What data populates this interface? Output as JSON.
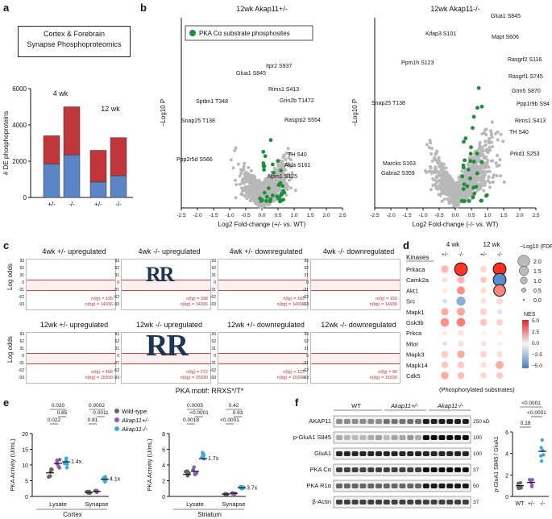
{
  "panels": {
    "a": "a",
    "b": "b",
    "c": "c",
    "d": "d",
    "e": "e",
    "f": "f"
  },
  "panel_a": {
    "box_line1": "Cortex & Forebrain",
    "box_line2": "Synapse Phosphoproteomics",
    "ylabel": "# DE phosphoproteins",
    "group1": "4 wk",
    "group2": "12 wk",
    "yticks": [
      "0",
      "2000",
      "4000",
      "6000"
    ],
    "xticks": [
      "+/-",
      "-/-",
      "+/-",
      "-/-"
    ],
    "colors": {
      "blue": "#5b85c6",
      "red": "#c0363b"
    }
  },
  "panel_b": {
    "title_left": "12wk Akap11+/-",
    "title_right": "12wk Akap11-/-",
    "legend": "PKA Cα substrate phosphosites",
    "ylabel": "−Log10 P",
    "xlabel_left": "Log2 Fold-change (+/- vs. WT)",
    "xlabel_right": "Log2 Fold-change (-/- vs. WT)",
    "xticks": [
      "-2.5",
      "-2.0",
      "-1.5",
      "-1.0",
      "-0.5",
      "0.0",
      "0.5",
      "1.0",
      "1.5",
      "2.0",
      "2.5"
    ],
    "left_labels": [
      "Sptbn1 T348",
      "Glua1 S845",
      "Itpr2 S937",
      "Rims1 S413",
      "Grin2b T1472",
      "Rasgrp2 S554",
      "Snap25 T138",
      "Ppp2r5d S566",
      "TH S40",
      "Aida S161",
      "Npm1 S125"
    ],
    "right_labels": [
      "Glua1 S845",
      "Kifap3 S101",
      "Mapt S606",
      "Ppm1h S123",
      "Rasgrf2 S116",
      "Rasgrf1 S745",
      "Snap25 T138",
      "Grm5 S870",
      "Ppp1r9b S94",
      "Rims1 S413",
      "TH S40",
      "Marcks S163",
      "Gabra2 S359",
      "Prkd1 S253"
    ],
    "colors": {
      "gray": "#b8b8b8",
      "green": "#1e8e3e"
    }
  },
  "panel_c": {
    "ylabel": "Log odds",
    "titles": [
      "4wk +/- upregulated",
      "4wk -/- upregulated",
      "4wk +/- downregulated",
      "4wk -/- downregulated",
      "12wk +/- upregulated",
      "12wk -/- upregulated",
      "12wk +/- downregulated",
      "12wk -/- downregulated"
    ],
    "counts_fg": [
      "n(fg) = 195",
      "n(fg) = 308",
      "n(fg) = 183",
      "n(fg) = 150",
      "n(fg) = 406",
      "n(fg) = 272",
      "n(fg) = 123",
      "n(fg) = 99"
    ],
    "counts_bg": [
      "n(bg) = 14936",
      "n(bg) = 14936",
      "n(bg) = 14936",
      "n(bg) = 14936",
      "n(bg) = 15930",
      "n(bg) = 15930",
      "n(bg) = 15930",
      "n(bg) = 15930"
    ],
    "yticks": [
      "93",
      "62",
      "31",
      "0",
      "-31",
      "-62",
      "-93"
    ],
    "caption": "PKA motif: RRXS*/T*"
  },
  "panel_d": {
    "kinases_header": "Kinases",
    "cols_top": [
      "4 wk",
      "12 wk"
    ],
    "cols": [
      "+/-",
      "-/-",
      "+/-",
      "-/-"
    ],
    "kinases": [
      "Prkaca",
      "Camk2a",
      "Akt1",
      "Src",
      "Mapk1",
      "Gsk3b",
      "Prkca",
      "Mtor",
      "Mapk3",
      "Mapk14",
      "Cdk5"
    ],
    "size_legend_title": "−Log10 (FDR)",
    "size_legend": [
      "2.0",
      "1.5",
      "1.0",
      "0.5",
      "0.0"
    ],
    "nes_title": "NES",
    "nes_ticks": [
      "5.0",
      "2.5",
      "0.0",
      "−2.5",
      "−5.0"
    ],
    "caption": "(Phosphorylated substrates)",
    "values": [
      [
        1.5,
        4.8,
        0.8,
        5.0
      ],
      [
        0.6,
        1.5,
        1.2,
        -4.5
      ],
      [
        0.3,
        2.5,
        0.6,
        2.8
      ],
      [
        -0.8,
        -3.0,
        0.5,
        0.7
      ],
      [
        1.8,
        2.0,
        0.8,
        -0.5
      ],
      [
        2.5,
        3.0,
        1.2,
        0.9
      ],
      [
        0.3,
        0.5,
        0.2,
        0.3
      ],
      [
        -0.6,
        0.5,
        0.6,
        0.2
      ],
      [
        1.0,
        1.8,
        0.8,
        0.6
      ],
      [
        1.2,
        1.0,
        0.5,
        1.8
      ],
      [
        1.8,
        1.4,
        0.7,
        1.1
      ]
    ],
    "sizes": [
      [
        1.0,
        2.0,
        0.8,
        2.0
      ],
      [
        0.5,
        1.0,
        0.7,
        2.0
      ],
      [
        0.5,
        1.1,
        0.7,
        1.8
      ],
      [
        0.4,
        1.3,
        0.6,
        0.8
      ],
      [
        1.0,
        1.1,
        0.9,
        0.6
      ],
      [
        1.2,
        1.2,
        0.9,
        0.8
      ],
      [
        0.4,
        0.6,
        0.3,
        0.5
      ],
      [
        0.4,
        0.7,
        0.5,
        0.4
      ],
      [
        0.9,
        1.0,
        0.8,
        0.7
      ],
      [
        0.8,
        0.9,
        0.7,
        1.1
      ],
      [
        1.0,
        0.9,
        0.8,
        0.8
      ]
    ]
  },
  "panel_e": {
    "ylabel": "PKA Activity (U/mL)",
    "cortex_label": "Cortex",
    "striatum_label": "Striatum",
    "groups": [
      "Lysate",
      "Synapse"
    ],
    "legend": [
      "Wild-type",
      "Akap11+/-",
      "Akap11-/-"
    ],
    "colors": [
      "#666666",
      "#8e5bb0",
      "#3fa9dc"
    ],
    "cortex_yticks": [
      "0",
      "5",
      "10",
      "15",
      "20"
    ],
    "striatum_yticks": [
      "0",
      "2",
      "4",
      "6",
      "8"
    ],
    "cortex_pvals": [
      "0.020",
      "0.85",
      "0.022",
      "0.0002",
      "0.0011",
      "0.81"
    ],
    "striatum_pvals": [
      "0.0005",
      "<0.0001",
      "0.0018",
      "0.42",
      "0.93",
      "<0.0001"
    ],
    "cortex_folds": [
      "1.4x",
      "4.1x"
    ],
    "striatum_folds": [
      "1.7x",
      "3.7x"
    ]
  },
  "panel_f": {
    "groups": [
      "WT",
      "Akap11+/-",
      "Akap11-/-"
    ],
    "rows": [
      "AKAP11",
      "p-GluA1 S845",
      "GluA1",
      "PKA Cα",
      "PKA R1α",
      "β-Actin"
    ],
    "mw": [
      "250 kD",
      "100",
      "100",
      "37",
      "50",
      "37"
    ],
    "ylabel": "p-GluA1 S845 / GluA1",
    "yticks": [
      "0",
      "2",
      "4",
      "6"
    ],
    "xticks": [
      "WT",
      "+/-",
      "-/-"
    ],
    "pvals": [
      "<0.0001",
      "0.28",
      "<0.0001"
    ]
  }
}
